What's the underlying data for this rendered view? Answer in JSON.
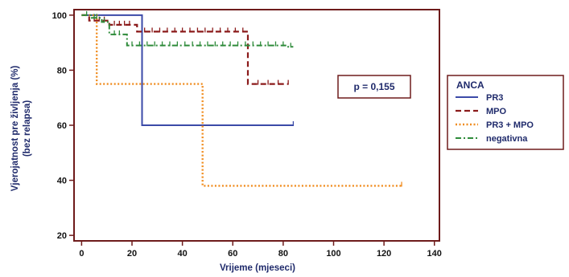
{
  "chart_data": {
    "type": "line",
    "subtype": "kaplan-meier step",
    "xlabel": "Vrijeme (mjeseci)",
    "ylabel_lines": [
      "Vjerojatnost pre življenja (%)",
      "(bez relapsa)"
    ],
    "xlim": [
      -3,
      142
    ],
    "ylim": [
      18,
      102
    ],
    "xticks": [
      0,
      20,
      40,
      60,
      80,
      100,
      120,
      140
    ],
    "yticks": [
      20,
      40,
      60,
      80,
      100
    ],
    "annotation": "p = 0,155",
    "legend": {
      "title": "ANCA",
      "placement": "right"
    },
    "series": [
      {
        "name": "PR3",
        "color": "#3b4aa8",
        "style": "solid",
        "points": [
          [
            0,
            100
          ],
          [
            24,
            100
          ],
          [
            24,
            60
          ],
          [
            84,
            60
          ]
        ],
        "censors": [
          84
        ]
      },
      {
        "name": "MPO",
        "color": "#8b1a1a",
        "style": "dashed",
        "points": [
          [
            0,
            100
          ],
          [
            3,
            100
          ],
          [
            3,
            98
          ],
          [
            11,
            98
          ],
          [
            11,
            96.5
          ],
          [
            22,
            96.5
          ],
          [
            22,
            94
          ],
          [
            66,
            94
          ],
          [
            66,
            75
          ],
          [
            82,
            75
          ]
        ],
        "censors": [
          5,
          7,
          9,
          13,
          15,
          17,
          19,
          25,
          28,
          31,
          34,
          37,
          40,
          43,
          46,
          49,
          52,
          55,
          58,
          61,
          64,
          70,
          74,
          78,
          82
        ]
      },
      {
        "name": "PR3 + MPO",
        "color": "#f08c1e",
        "style": "dotted",
        "points": [
          [
            0,
            100
          ],
          [
            6,
            100
          ],
          [
            6,
            75
          ],
          [
            48,
            75
          ],
          [
            48,
            38
          ],
          [
            127,
            38
          ]
        ],
        "censors": [
          127
        ]
      },
      {
        "name": "negativna",
        "color": "#2e8b3a",
        "style": "dashdot",
        "points": [
          [
            0,
            100
          ],
          [
            4,
            100
          ],
          [
            4,
            99
          ],
          [
            8,
            99
          ],
          [
            8,
            97.5
          ],
          [
            11,
            97.5
          ],
          [
            11,
            93
          ],
          [
            18,
            93
          ],
          [
            18,
            89
          ],
          [
            82,
            89
          ],
          [
            82,
            88.5
          ],
          [
            84,
            88.5
          ]
        ],
        "censors": [
          2,
          5,
          6,
          9,
          13,
          15,
          20,
          23,
          26,
          29,
          32,
          35,
          38,
          41,
          44,
          47,
          50,
          53,
          56,
          59,
          62,
          65,
          68,
          71,
          74,
          77,
          80,
          83
        ]
      }
    ]
  }
}
